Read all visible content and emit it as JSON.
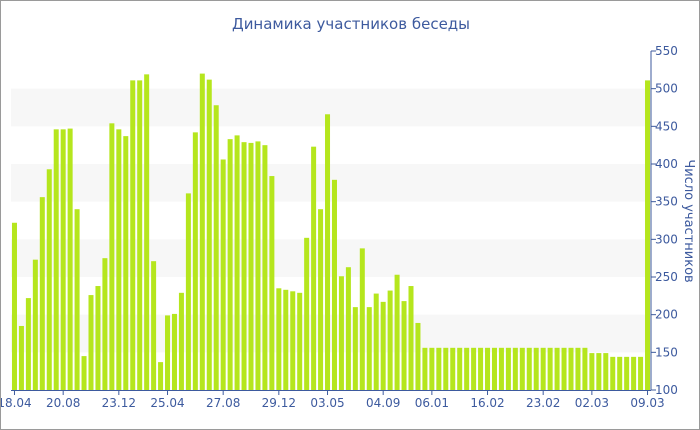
{
  "chart_data": {
    "type": "bar",
    "title": "Динамика участников беседы",
    "ylabel": "Число участников",
    "xlabel": "",
    "ylim": [
      100,
      550
    ],
    "y_ticks": [
      100,
      150,
      200,
      250,
      300,
      350,
      400,
      450,
      500,
      550
    ],
    "y_axis_side": "right",
    "bar_color": "#b5e61d",
    "grid_band_color": "#f7f7f7",
    "axis_color": "#3d5a9e",
    "x_tick_labels": [
      {
        "index": 0,
        "label": "18.04"
      },
      {
        "index": 7,
        "label": "20.08"
      },
      {
        "index": 15,
        "label": "23.12"
      },
      {
        "index": 22,
        "label": "25.04"
      },
      {
        "index": 30,
        "label": "27.08"
      },
      {
        "index": 38,
        "label": "29.12"
      },
      {
        "index": 45,
        "label": "03.05"
      },
      {
        "index": 53,
        "label": "04.09"
      },
      {
        "index": 60,
        "label": "06.01"
      },
      {
        "index": 68,
        "label": "16.02"
      },
      {
        "index": 76,
        "label": "23.02"
      },
      {
        "index": 83,
        "label": "02.03"
      },
      {
        "index": 91,
        "label": "09.03"
      }
    ],
    "values": [
      322,
      185,
      222,
      273,
      356,
      393,
      446,
      446,
      447,
      340,
      145,
      226,
      238,
      275,
      454,
      446,
      437,
      511,
      511,
      519,
      271,
      137,
      199,
      201,
      229,
      361,
      442,
      520,
      512,
      478,
      406,
      433,
      438,
      429,
      428,
      430,
      425,
      384,
      235,
      233,
      231,
      229,
      302,
      423,
      340,
      466,
      379,
      251,
      263,
      210,
      288,
      210,
      228,
      217,
      232,
      253,
      218,
      238,
      189,
      156,
      156,
      156,
      156,
      156,
      156,
      156,
      156,
      156,
      156,
      156,
      156,
      156,
      156,
      156,
      156,
      156,
      156,
      156,
      156,
      156,
      156,
      156,
      156,
      149,
      149,
      149,
      144,
      144,
      144,
      144,
      144,
      511
    ]
  }
}
